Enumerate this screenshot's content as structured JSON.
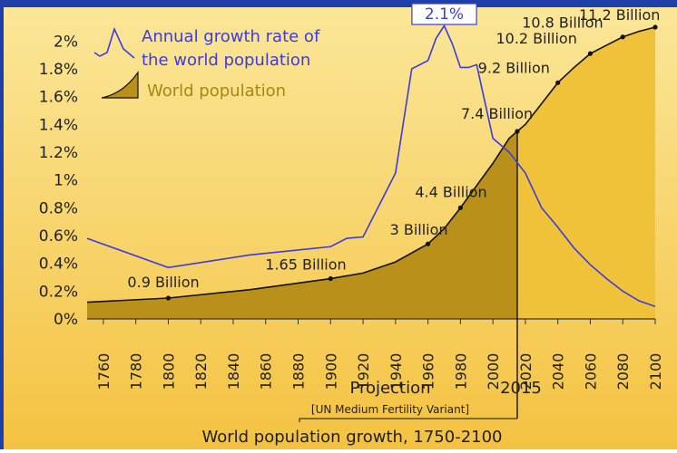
{
  "chart_data": {
    "type": "line",
    "title": "World  population growth, 1750-2100",
    "projection_label": "Projection",
    "projection_note": "[UN Medium Fertility Variant]",
    "projection_start_label": "2015",
    "peak_label": "2.1%",
    "xlim": [
      1750,
      2100
    ],
    "ylim": [
      0,
      2.1
    ],
    "y_ticks": [
      {
        "value": 0,
        "label": "0%"
      },
      {
        "value": 0.2,
        "label": "0.2%"
      },
      {
        "value": 0.4,
        "label": "0.4%"
      },
      {
        "value": 0.6,
        "label": "0.6%"
      },
      {
        "value": 0.8,
        "label": "0.8%"
      },
      {
        "value": 1.0,
        "label": "1%"
      },
      {
        "value": 1.2,
        "label": "1.2%"
      },
      {
        "value": 1.4,
        "label": "1.4%"
      },
      {
        "value": 1.6,
        "label": "1.6%"
      },
      {
        "value": 1.8,
        "label": "1.8%"
      },
      {
        "value": 2.0,
        "label": "2%"
      }
    ],
    "x_ticks": [
      "1760",
      "1780",
      "1800",
      "1820",
      "1840",
      "1860",
      "1880",
      "1900",
      "1920",
      "1940",
      "1960",
      "1980",
      "2000",
      "2020",
      "2040",
      "2060",
      "2080",
      "2100"
    ],
    "legend": {
      "growth_label_line1": "Annual growth rate of",
      "growth_label_line2": "the world population",
      "population_label": "World population"
    },
    "series": [
      {
        "name": "Annual growth rate of the world population",
        "color": "#3b3be0",
        "points": [
          [
            1750,
            0.58
          ],
          [
            1800,
            0.37
          ],
          [
            1850,
            0.46
          ],
          [
            1900,
            0.52
          ],
          [
            1910,
            0.58
          ],
          [
            1920,
            0.59
          ],
          [
            1940,
            1.05
          ],
          [
            1950,
            1.8
          ],
          [
            1960,
            1.86
          ],
          [
            1965,
            2.02
          ],
          [
            1970,
            2.11
          ],
          [
            1975,
            1.98
          ],
          [
            1980,
            1.81
          ],
          [
            1985,
            1.81
          ],
          [
            1990,
            1.83
          ],
          [
            2000,
            1.3
          ],
          [
            2010,
            1.2
          ],
          [
            2020,
            1.05
          ],
          [
            2030,
            0.8
          ],
          [
            2040,
            0.66
          ],
          [
            2050,
            0.51
          ],
          [
            2060,
            0.39
          ],
          [
            2070,
            0.29
          ],
          [
            2080,
            0.2
          ],
          [
            2090,
            0.13
          ],
          [
            2100,
            0.09
          ]
        ]
      },
      {
        "name": "World population",
        "color": "#c9a020",
        "shape_points": [
          [
            1750,
            0.12
          ],
          [
            1800,
            0.15
          ],
          [
            1850,
            0.21
          ],
          [
            1900,
            0.29
          ],
          [
            1920,
            0.33
          ],
          [
            1940,
            0.41
          ],
          [
            1960,
            0.54
          ],
          [
            1970,
            0.65
          ],
          [
            1980,
            0.8
          ],
          [
            1990,
            0.96
          ],
          [
            2000,
            1.12
          ],
          [
            2010,
            1.3
          ],
          [
            2020,
            1.4
          ],
          [
            2030,
            1.55
          ],
          [
            2040,
            1.7
          ],
          [
            2050,
            1.81
          ],
          [
            2060,
            1.91
          ],
          [
            2070,
            1.97
          ],
          [
            2080,
            2.03
          ],
          [
            2090,
            2.07
          ],
          [
            2100,
            2.1
          ]
        ]
      }
    ],
    "population_labels": [
      {
        "year": 1800,
        "text": "0.9 Billion"
      },
      {
        "year": 1900,
        "text": "1.65 Billion"
      },
      {
        "year": 1960,
        "text": "3 Billion"
      },
      {
        "year": 1980,
        "text": "4.4 Billion"
      },
      {
        "year": 2015,
        "text": "7.4 Billion"
      },
      {
        "year": 2040,
        "text": "9.2 Billion"
      },
      {
        "year": 2060,
        "text": "10.2 Billion"
      },
      {
        "year": 2080,
        "text": "10.8 Billion"
      },
      {
        "year": 2100,
        "text": "11.2 Billion"
      }
    ],
    "projection_start": 2015,
    "colors": {
      "background_top": "#fbe79a",
      "background_bottom": "#f4c241",
      "historic_fill": "#b9901a",
      "projected_fill": "#f0c23a",
      "growth_line": "#3b3be0",
      "text": "#1f1f1f"
    }
  }
}
